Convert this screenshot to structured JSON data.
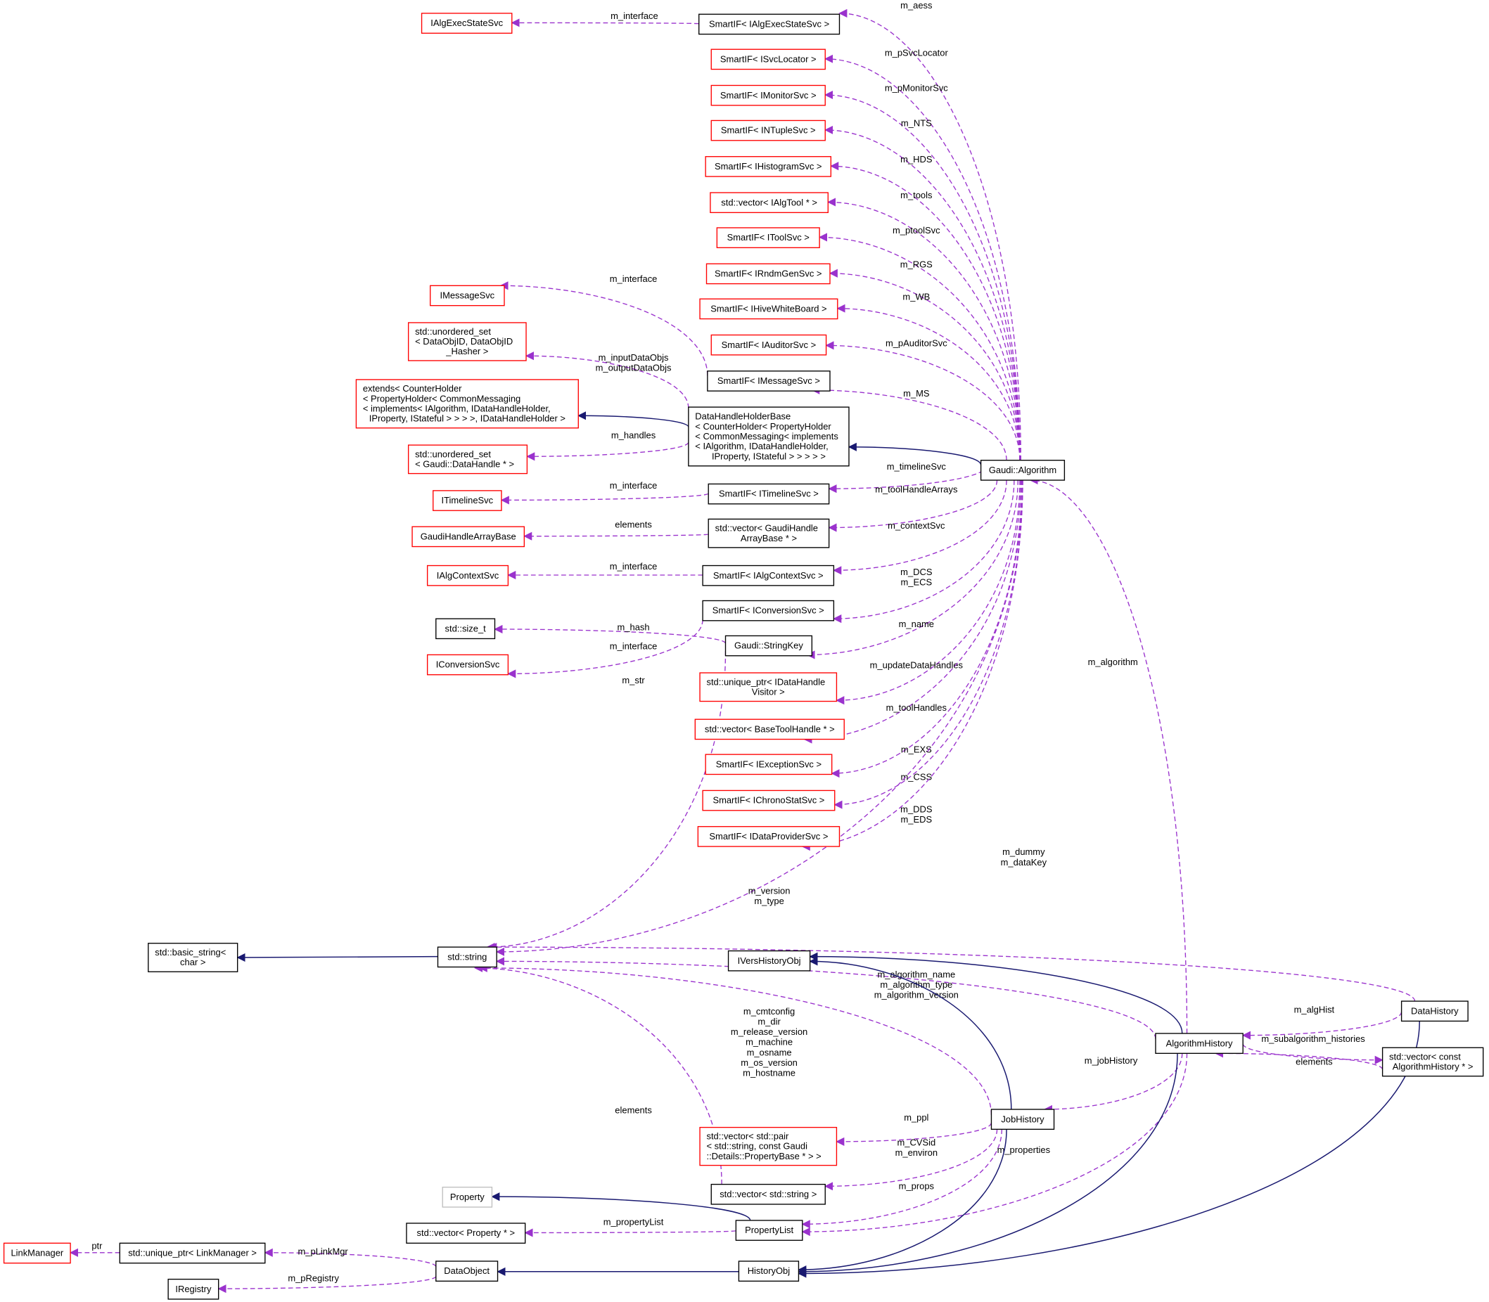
{
  "colors": {
    "member_edge": "#9a32cd",
    "inherit_edge": "#191970",
    "undocumented_border": "#ff0000",
    "documented_border": "#000000",
    "external_border": "#bfbfbf",
    "focus_fill": "#bfbfbf"
  },
  "nodes": {
    "IAlgExecStateSvc": {
      "lines": [
        "IAlgExecStateSvc"
      ],
      "border": "red"
    },
    "SmartIF_IAlgExecStateSvc": {
      "lines": [
        "SmartIF< IAlgExecStateSvc >"
      ],
      "border": "black"
    },
    "SmartIF_ISvcLocator": {
      "lines": [
        "SmartIF< ISvcLocator >"
      ],
      "border": "red"
    },
    "SmartIF_IMonitorSvc": {
      "lines": [
        "SmartIF< IMonitorSvc >"
      ],
      "border": "red"
    },
    "SmartIF_INTupleSvc": {
      "lines": [
        "SmartIF< INTupleSvc >"
      ],
      "border": "red"
    },
    "SmartIF_IHistogramSvc": {
      "lines": [
        "SmartIF< IHistogramSvc >"
      ],
      "border": "red"
    },
    "vector_IAlgTool": {
      "lines": [
        "std::vector< IAlgTool * >"
      ],
      "border": "red"
    },
    "SmartIF_IToolSvc": {
      "lines": [
        "SmartIF< IToolSvc >"
      ],
      "border": "red"
    },
    "SmartIF_IRndmGenSvc": {
      "lines": [
        "SmartIF< IRndmGenSvc >"
      ],
      "border": "red"
    },
    "SmartIF_IHiveWhiteBoard": {
      "lines": [
        "SmartIF< IHiveWhiteBoard >"
      ],
      "border": "red"
    },
    "SmartIF_IAuditorSvc": {
      "lines": [
        "SmartIF< IAuditorSvc >"
      ],
      "border": "red"
    },
    "IMessageSvc": {
      "lines": [
        "IMessageSvc"
      ],
      "border": "red"
    },
    "unordered_set_DataObjID": {
      "lines": [
        "std::unordered_set",
        "< DataObjID, DataObjID",
        "_Hasher >"
      ],
      "border": "red"
    },
    "extends_CounterHolder": {
      "lines": [
        "extends< CounterHolder",
        "< PropertyHolder< CommonMessaging",
        "< implements< IAlgorithm, IDataHandleHolder,",
        "IProperty, IStateful > > > >, IDataHandleHolder >"
      ],
      "border": "red"
    },
    "SmartIF_IMessageSvc": {
      "lines": [
        "SmartIF< IMessageSvc >"
      ],
      "border": "black"
    },
    "DataHandleHolderBase": {
      "lines": [
        "DataHandleHolderBase",
        "< CounterHolder< PropertyHolder",
        "< CommonMessaging< implements",
        "< IAlgorithm, IDataHandleHolder,",
        "IProperty, IStateful > > > > >"
      ],
      "border": "black"
    },
    "unordered_set_DataHandle": {
      "lines": [
        "std::unordered_set",
        "< Gaudi::DataHandle * >"
      ],
      "border": "red"
    },
    "ITimelineSvc": {
      "lines": [
        "ITimelineSvc"
      ],
      "border": "red"
    },
    "SmartIF_ITimelineSvc": {
      "lines": [
        "SmartIF< ITimelineSvc >"
      ],
      "border": "black"
    },
    "GaudiHandleArrayBase": {
      "lines": [
        "GaudiHandleArrayBase"
      ],
      "border": "red"
    },
    "vector_GaudiHandleArrayBase": {
      "lines": [
        "std::vector< GaudiHandle",
        "ArrayBase * >"
      ],
      "border": "black"
    },
    "IAlgContextSvc": {
      "lines": [
        "IAlgContextSvc"
      ],
      "border": "red"
    },
    "SmartIF_IAlgContextSvc": {
      "lines": [
        "SmartIF< IAlgContextSvc >"
      ],
      "border": "black"
    },
    "GaudiAlgorithm": {
      "lines": [
        "Gaudi::Algorithm"
      ],
      "border": "black"
    },
    "SmartIF_IConversionSvc": {
      "lines": [
        "SmartIF< IConversionSvc >"
      ],
      "border": "black"
    },
    "size_t": {
      "lines": [
        "std::size_t"
      ],
      "border": "black"
    },
    "StringKey": {
      "lines": [
        "Gaudi::StringKey"
      ],
      "border": "black"
    },
    "IConversionSvc": {
      "lines": [
        "IConversionSvc"
      ],
      "border": "red"
    },
    "unique_ptr_IDataHandleVisitor": {
      "lines": [
        "std::unique_ptr< IDataHandle",
        "Visitor >"
      ],
      "border": "red"
    },
    "vector_BaseToolHandle": {
      "lines": [
        "std::vector< BaseToolHandle * >"
      ],
      "border": "red"
    },
    "SmartIF_IExceptionSvc": {
      "lines": [
        "SmartIF< IExceptionSvc >"
      ],
      "border": "red"
    },
    "SmartIF_IChronoStatSvc": {
      "lines": [
        "SmartIF< IChronoStatSvc >"
      ],
      "border": "red"
    },
    "SmartIF_IDataProviderSvc": {
      "lines": [
        "SmartIF< IDataProviderSvc >"
      ],
      "border": "red"
    },
    "basic_string": {
      "lines": [
        "std::basic_string<",
        "char >"
      ],
      "border": "black"
    },
    "string": {
      "lines": [
        "std::string"
      ],
      "border": "black"
    },
    "IVersHistoryObj": {
      "lines": [
        "IVersHistoryObj"
      ],
      "border": "black"
    },
    "DataHistory": {
      "lines": [
        "DataHistory"
      ],
      "border": "black",
      "focus": true
    },
    "AlgorithmHistory": {
      "lines": [
        "AlgorithmHistory"
      ],
      "border": "black"
    },
    "vector_const_AlgorithmHistory": {
      "lines": [
        "std::vector< const",
        "AlgorithmHistory * >"
      ],
      "border": "black"
    },
    "JobHistory": {
      "lines": [
        "JobHistory"
      ],
      "border": "black"
    },
    "vector_pair": {
      "lines": [
        "std::vector< std::pair",
        "< std::string, const Gaudi",
        "::Details::PropertyBase * > >"
      ],
      "border": "red"
    },
    "vector_string": {
      "lines": [
        "std::vector< std::string >"
      ],
      "border": "black"
    },
    "Property": {
      "lines": [
        "Property"
      ],
      "border": "grey"
    },
    "vector_Property": {
      "lines": [
        "std::vector< Property * >"
      ],
      "border": "black"
    },
    "PropertyList": {
      "lines": [
        "PropertyList"
      ],
      "border": "black"
    },
    "LinkManager": {
      "lines": [
        "LinkManager"
      ],
      "border": "red"
    },
    "unique_ptr_LinkManager": {
      "lines": [
        "std::unique_ptr< LinkManager >"
      ],
      "border": "black"
    },
    "DataObject": {
      "lines": [
        "DataObject"
      ],
      "border": "black"
    },
    "HistoryObj": {
      "lines": [
        "HistoryObj"
      ],
      "border": "black"
    },
    "IRegistry": {
      "lines": [
        "IRegistry"
      ],
      "border": "black"
    }
  },
  "edges": [
    {
      "id": "e1",
      "from": "SmartIF_IAlgExecStateSvc",
      "to": "IAlgExecStateSvc",
      "kind": "member",
      "label": [
        "m_interface"
      ]
    },
    {
      "id": "e2",
      "from": "GaudiAlgorithm",
      "to": "SmartIF_IAlgExecStateSvc",
      "kind": "member",
      "label": [
        "m_aess"
      ]
    },
    {
      "id": "e3",
      "from": "GaudiAlgorithm",
      "to": "SmartIF_ISvcLocator",
      "kind": "member",
      "label": [
        "m_pSvcLocator"
      ]
    },
    {
      "id": "e4",
      "from": "GaudiAlgorithm",
      "to": "SmartIF_IMonitorSvc",
      "kind": "member",
      "label": [
        "m_pMonitorSvc"
      ]
    },
    {
      "id": "e5",
      "from": "GaudiAlgorithm",
      "to": "SmartIF_INTupleSvc",
      "kind": "member",
      "label": [
        "m_NTS"
      ]
    },
    {
      "id": "e6",
      "from": "GaudiAlgorithm",
      "to": "SmartIF_IHistogramSvc",
      "kind": "member",
      "label": [
        "m_HDS"
      ]
    },
    {
      "id": "e7",
      "from": "GaudiAlgorithm",
      "to": "vector_IAlgTool",
      "kind": "member",
      "label": [
        "m_tools"
      ]
    },
    {
      "id": "e8",
      "from": "GaudiAlgorithm",
      "to": "SmartIF_IToolSvc",
      "kind": "member",
      "label": [
        "m_ptoolSvc"
      ]
    },
    {
      "id": "e9",
      "from": "GaudiAlgorithm",
      "to": "SmartIF_IRndmGenSvc",
      "kind": "member",
      "label": [
        "m_RGS"
      ]
    },
    {
      "id": "e10",
      "from": "GaudiAlgorithm",
      "to": "SmartIF_IHiveWhiteBoard",
      "kind": "member",
      "label": [
        "m_WB"
      ]
    },
    {
      "id": "e11",
      "from": "GaudiAlgorithm",
      "to": "SmartIF_IAuditorSvc",
      "kind": "member",
      "label": [
        "m_pAuditorSvc"
      ]
    },
    {
      "id": "e12",
      "from": "SmartIF_IMessageSvc",
      "to": "IMessageSvc",
      "kind": "member",
      "label": [
        "m_interface"
      ]
    },
    {
      "id": "e13",
      "from": "GaudiAlgorithm",
      "to": "SmartIF_IMessageSvc",
      "kind": "member",
      "label": [
        "m_MS"
      ]
    },
    {
      "id": "e14",
      "from": "DataHandleHolderBase",
      "to": "unordered_set_DataObjID",
      "kind": "member",
      "label": [
        "m_inputDataObjs",
        "m_outputDataObjs"
      ]
    },
    {
      "id": "e15",
      "from": "DataHandleHolderBase",
      "to": "extends_CounterHolder",
      "kind": "inherit",
      "label": []
    },
    {
      "id": "e16",
      "from": "GaudiAlgorithm",
      "to": "DataHandleHolderBase",
      "kind": "inherit",
      "label": []
    },
    {
      "id": "e17",
      "from": "DataHandleHolderBase",
      "to": "unordered_set_DataHandle",
      "kind": "member",
      "label": [
        "m_handles"
      ]
    },
    {
      "id": "e18",
      "from": "SmartIF_ITimelineSvc",
      "to": "ITimelineSvc",
      "kind": "member",
      "label": [
        "m_interface"
      ]
    },
    {
      "id": "e19",
      "from": "GaudiAlgorithm",
      "to": "SmartIF_ITimelineSvc",
      "kind": "member",
      "label": [
        "m_timelineSvc"
      ]
    },
    {
      "id": "e20",
      "from": "vector_GaudiHandleArrayBase",
      "to": "GaudiHandleArrayBase",
      "kind": "member",
      "label": [
        "elements"
      ]
    },
    {
      "id": "e21",
      "from": "GaudiAlgorithm",
      "to": "vector_GaudiHandleArrayBase",
      "kind": "member",
      "label": [
        "m_toolHandleArrays"
      ]
    },
    {
      "id": "e22",
      "from": "SmartIF_IAlgContextSvc",
      "to": "IAlgContextSvc",
      "kind": "member",
      "label": [
        "m_interface"
      ]
    },
    {
      "id": "e23",
      "from": "GaudiAlgorithm",
      "to": "SmartIF_IAlgContextSvc",
      "kind": "member",
      "label": [
        "m_contextSvc"
      ]
    },
    {
      "id": "e24",
      "from": "GaudiAlgorithm",
      "to": "SmartIF_IConversionSvc",
      "kind": "member",
      "label": [
        "m_DCS",
        "m_ECS"
      ]
    },
    {
      "id": "e25",
      "from": "StringKey",
      "to": "size_t",
      "kind": "member",
      "label": [
        "m_hash"
      ]
    },
    {
      "id": "e26",
      "from": "SmartIF_IConversionSvc",
      "to": "IConversionSvc",
      "kind": "member",
      "label": [
        "m_interface"
      ]
    },
    {
      "id": "e27",
      "from": "GaudiAlgorithm",
      "to": "StringKey",
      "kind": "member",
      "label": [
        "m_name"
      ]
    },
    {
      "id": "e28",
      "from": "StringKey",
      "to": "string",
      "kind": "member",
      "label": [
        "m_str"
      ]
    },
    {
      "id": "e29",
      "from": "GaudiAlgorithm",
      "to": "unique_ptr_IDataHandleVisitor",
      "kind": "member",
      "label": [
        "m_updateDataHandles"
      ]
    },
    {
      "id": "e30",
      "from": "GaudiAlgorithm",
      "to": "vector_BaseToolHandle",
      "kind": "member",
      "label": [
        "m_toolHandles"
      ]
    },
    {
      "id": "e31",
      "from": "GaudiAlgorithm",
      "to": "SmartIF_IExceptionSvc",
      "kind": "member",
      "label": [
        "m_EXS"
      ]
    },
    {
      "id": "e32",
      "from": "GaudiAlgorithm",
      "to": "SmartIF_IChronoStatSvc",
      "kind": "member",
      "label": [
        "m_CSS"
      ]
    },
    {
      "id": "e33",
      "from": "GaudiAlgorithm",
      "to": "SmartIF_IDataProviderSvc",
      "kind": "member",
      "label": [
        "m_DDS",
        "m_EDS"
      ]
    },
    {
      "id": "e34",
      "from": "DataHistory",
      "to": "string",
      "kind": "member",
      "label": [
        "m_dummy",
        "m_dataKey"
      ]
    },
    {
      "id": "e35",
      "from": "GaudiAlgorithm",
      "to": "string",
      "kind": "member",
      "label": [
        "m_version",
        "m_type"
      ]
    },
    {
      "id": "e36",
      "from": "string",
      "to": "basic_string",
      "kind": "inherit",
      "label": []
    },
    {
      "id": "e37",
      "from": "AlgorithmHistory",
      "to": "string",
      "kind": "member",
      "label": [
        "m_algorithm_name",
        "m_algorithm_type",
        "m_algorithm_version"
      ]
    },
    {
      "id": "e38",
      "from": "AlgorithmHistory",
      "to": "GaudiAlgorithm",
      "kind": "member",
      "label": [
        "m_algorithm"
      ]
    },
    {
      "id": "e39",
      "from": "AlgorithmHistory",
      "to": "IVersHistoryObj",
      "kind": "inherit",
      "label": []
    },
    {
      "id": "e40",
      "from": "JobHistory",
      "to": "IVersHistoryObj",
      "kind": "inherit",
      "label": []
    },
    {
      "id": "e41",
      "from": "DataHistory",
      "to": "AlgorithmHistory",
      "kind": "member",
      "label": [
        "m_algHist"
      ]
    },
    {
      "id": "e42",
      "from": "AlgorithmHistory",
      "to": "vector_const_AlgorithmHistory",
      "kind": "member",
      "label": [
        "m_subalgorithm_histories"
      ]
    },
    {
      "id": "e43",
      "from": "vector_const_AlgorithmHistory",
      "to": "AlgorithmHistory",
      "kind": "member",
      "label": [
        "elements"
      ]
    },
    {
      "id": "e44",
      "from": "DataHistory",
      "to": "HistoryObj",
      "kind": "inherit",
      "label": []
    },
    {
      "id": "e45",
      "from": "JobHistory",
      "to": "string",
      "kind": "member",
      "label": [
        "m_cmtconfig",
        "m_dir",
        "m_release_version",
        "m_machine",
        "m_osname",
        "m_os_version",
        "m_hostname"
      ]
    },
    {
      "id": "e46",
      "from": "AlgorithmHistory",
      "to": "JobHistory",
      "kind": "member",
      "label": [
        "m_jobHistory"
      ]
    },
    {
      "id": "e47",
      "from": "vector_string",
      "to": "string",
      "kind": "member",
      "label": [
        "elements"
      ]
    },
    {
      "id": "e48",
      "from": "JobHistory",
      "to": "vector_pair",
      "kind": "member",
      "label": [
        "m_ppl"
      ]
    },
    {
      "id": "e49",
      "from": "JobHistory",
      "to": "vector_string",
      "kind": "member",
      "label": [
        "m_CVSid",
        "m_environ"
      ]
    },
    {
      "id": "e50",
      "from": "JobHistory",
      "to": "PropertyList",
      "kind": "member",
      "label": [
        "m_props"
      ]
    },
    {
      "id": "e51",
      "from": "AlgorithmHistory",
      "to": "PropertyList",
      "kind": "member",
      "label": [
        "m_properties"
      ]
    },
    {
      "id": "e52",
      "from": "PropertyList",
      "to": "Property",
      "kind": "inherit",
      "label": []
    },
    {
      "id": "e53",
      "from": "PropertyList",
      "to": "vector_Property",
      "kind": "member",
      "label": [
        "m_propertyList"
      ]
    },
    {
      "id": "e54",
      "from": "JobHistory",
      "to": "HistoryObj",
      "kind": "inherit",
      "label": []
    },
    {
      "id": "e55",
      "from": "AlgorithmHistory",
      "to": "HistoryObj",
      "kind": "inherit",
      "label": []
    },
    {
      "id": "e56",
      "from": "unique_ptr_LinkManager",
      "to": "LinkManager",
      "kind": "member",
      "label": [
        "ptr"
      ]
    },
    {
      "id": "e57",
      "from": "DataObject",
      "to": "unique_ptr_LinkManager",
      "kind": "member",
      "label": [
        "m_pLinkMgr"
      ]
    },
    {
      "id": "e58",
      "from": "DataObject",
      "to": "IRegistry",
      "kind": "member",
      "label": [
        "m_pRegistry"
      ]
    },
    {
      "id": "e59",
      "from": "HistoryObj",
      "to": "DataObject",
      "kind": "inherit",
      "label": []
    }
  ]
}
